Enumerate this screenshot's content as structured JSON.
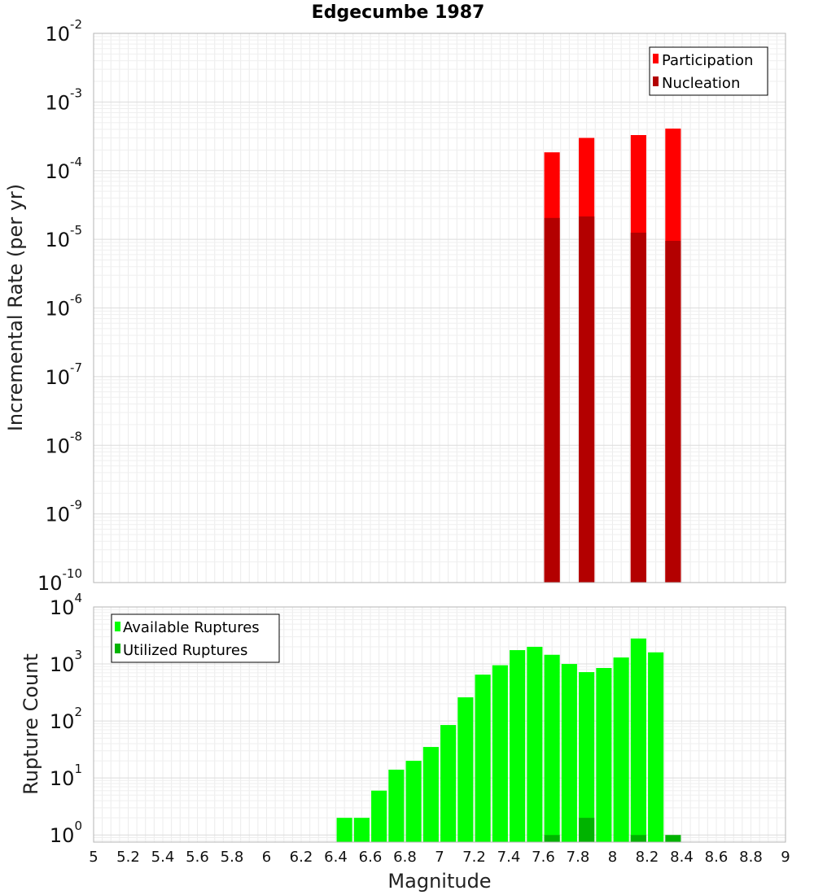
{
  "title": "Edgecumbe 1987",
  "chart_data": [
    {
      "type": "bar",
      "ylabel": "Incremental Rate (per yr)",
      "yscale": "log",
      "ylim": [
        1e-10,
        0.01
      ],
      "xlim": [
        5,
        9
      ],
      "ytick_exponents": [
        -10,
        -9,
        -8,
        -7,
        -6,
        -5,
        -4,
        -3,
        -2
      ],
      "grid": true,
      "legend_position": "top-right",
      "bar_width": 0.09,
      "series": [
        {
          "name": "Participation",
          "color": "#ff0000",
          "x": [
            7.65,
            7.85,
            8.15,
            8.35
          ],
          "values": [
            0.000185,
            0.0003,
            0.00033,
            0.00041
          ]
        },
        {
          "name": "Nucleation",
          "color": "#b30000",
          "x": [
            7.65,
            7.85,
            8.15,
            8.35
          ],
          "values": [
            2.05e-05,
            2.15e-05,
            1.25e-05,
            9.5e-06
          ]
        }
      ]
    },
    {
      "type": "bar",
      "xlabel": "Magnitude",
      "ylabel": "Rupture Count",
      "yscale": "log",
      "ylim": [
        0.75,
        10000
      ],
      "xlim": [
        5,
        9
      ],
      "ytick_exponents": [
        0,
        1,
        2,
        3,
        4
      ],
      "xticks": [
        "5",
        "5.2",
        "5.4",
        "5.6",
        "5.8",
        "6",
        "6.2",
        "6.4",
        "6.6",
        "6.8",
        "7",
        "7.2",
        "7.4",
        "7.6",
        "7.8",
        "8",
        "8.2",
        "8.4",
        "8.6",
        "8.8",
        "9"
      ],
      "grid": true,
      "legend_position": "top-left",
      "bar_width": 0.09,
      "series": [
        {
          "name": "Available Ruptures",
          "color": "#00ff00",
          "x": [
            6.45,
            6.55,
            6.65,
            6.75,
            6.85,
            6.95,
            7.05,
            7.15,
            7.25,
            7.35,
            7.45,
            7.55,
            7.65,
            7.75,
            7.85,
            7.95,
            8.05,
            8.15,
            8.25
          ],
          "values": [
            2,
            2,
            6,
            14,
            20,
            35,
            85,
            260,
            650,
            950,
            1750,
            2000,
            1450,
            1000,
            720,
            850,
            1300,
            2800,
            1600
          ]
        },
        {
          "name": "Utilized Ruptures",
          "color": "#00b300",
          "x": [
            7.65,
            7.85,
            8.15,
            8.35
          ],
          "values": [
            1,
            2,
            1,
            1
          ]
        }
      ]
    }
  ]
}
